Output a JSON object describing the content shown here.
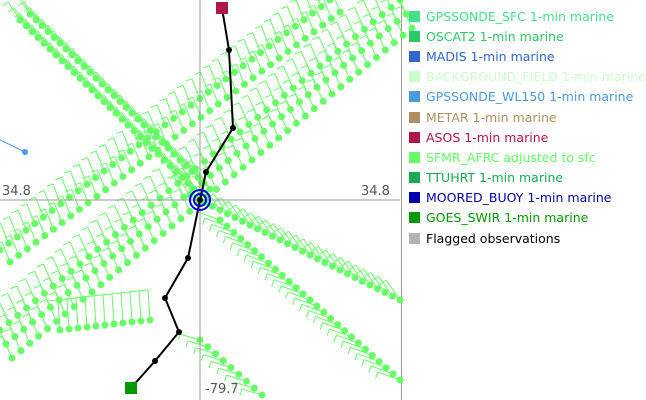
{
  "map": {
    "lat_label_left": "34.8",
    "lat_label_right": "34.8",
    "lon_label_bottom": "-79.7",
    "barb_color": "#66ff66",
    "track_color": "#000000",
    "track_start_marker_color": "#b0164a",
    "track_end_marker_color": "#009900",
    "center_marker_color": "#0000dd"
  },
  "legend": [
    {
      "label": "GPSSONDE_SFC 1-min marine",
      "color": "#44e08a"
    },
    {
      "label": "OSCAT2 1-min marine",
      "color": "#2ec866"
    },
    {
      "label": "MADIS 1-min marine",
      "color": "#3366cc"
    },
    {
      "label": "BACKGROUND_FIELD 1-min marine",
      "color": "#ccffcc"
    },
    {
      "label": "GPSSONDE_WL150 1-min marine",
      "color": "#4c99e0"
    },
    {
      "label": "METAR 1-min marine",
      "color": "#b09060"
    },
    {
      "label": "ASOS 1-min marine",
      "color": "#b0164a"
    },
    {
      "label": "SFMR_AFRC adjusted to sfc",
      "color": "#66ff66"
    },
    {
      "label": "TTUHRT 1-min marine",
      "color": "#1aaa55"
    },
    {
      "label": "MOORED_BUOY 1-min marine",
      "color": "#0000aa"
    },
    {
      "label": "GOES_SWIR 1-min marine",
      "color": "#009900"
    },
    {
      "label": "Flagged observations",
      "color": "#b3b3b3",
      "text_color": "#000000"
    }
  ]
}
